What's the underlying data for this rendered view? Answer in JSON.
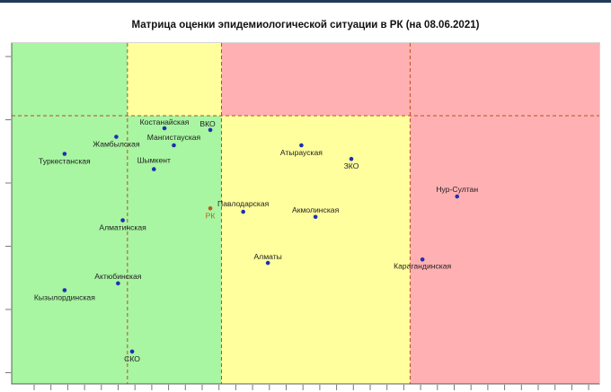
{
  "title": "Матрица оценки эпидемиологической ситуации в РК (на 08.06.2021)",
  "colors": {
    "green": "#a8f5a2",
    "yellow": "#ffff9e",
    "red": "#ffb0b3",
    "point": "#1f2fb0",
    "point_rk": "#b85c1e",
    "divider": "#b8501c"
  },
  "chart_data": {
    "type": "scatter",
    "title": "Матрица оценки эпидемиологической ситуации в РК (на 08.06.2021)",
    "xlabel": "",
    "ylabel": "",
    "xlim": [
      0,
      100
    ],
    "ylim": [
      0,
      100
    ],
    "grid": false,
    "zones": [
      {
        "x": [
          0,
          100
        ],
        "y": [
          0,
          100
        ],
        "color": "green"
      },
      {
        "x": [
          19.7,
          35.7
        ],
        "y": [
          78.7,
          100
        ],
        "color": "yellow"
      },
      {
        "x": [
          35.7,
          67.8
        ],
        "y": [
          0,
          78.7
        ],
        "color": "yellow"
      },
      {
        "x": [
          35.7,
          100
        ],
        "y": [
          78.7,
          100
        ],
        "color": "red"
      },
      {
        "x": [
          67.8,
          100
        ],
        "y": [
          0,
          78.7
        ],
        "color": "red"
      }
    ],
    "dividers": {
      "x": [
        19.7,
        35.7,
        67.8
      ],
      "y": [
        78.7
      ]
    },
    "points": [
      {
        "label": "Костанайская",
        "x": 26.0,
        "y": 75.0
      },
      {
        "label": "ВКО",
        "x": 33.8,
        "y": 74.5
      },
      {
        "label": "Жамбылская",
        "x": 17.8,
        "y": 72.5
      },
      {
        "label": "Мангистауская",
        "x": 27.6,
        "y": 70.0
      },
      {
        "label": "Туркестанская",
        "x": 9.0,
        "y": 67.5
      },
      {
        "label": "Шымкент",
        "x": 24.2,
        "y": 63.0
      },
      {
        "label": "Атырауская",
        "x": 49.3,
        "y": 70.0
      },
      {
        "label": "ЗКО",
        "x": 57.8,
        "y": 66.0
      },
      {
        "label": "Нур-Султан",
        "x": 75.8,
        "y": 55.0
      },
      {
        "label": "РК",
        "x": 33.8,
        "y": 51.5
      },
      {
        "label": "Павлодарская",
        "x": 39.4,
        "y": 50.5
      },
      {
        "label": "Акмолинская",
        "x": 51.7,
        "y": 49.0
      },
      {
        "label": "Алматинская",
        "x": 18.9,
        "y": 48.0
      },
      {
        "label": "Алматы",
        "x": 43.6,
        "y": 35.5
      },
      {
        "label": "Карагандинская",
        "x": 69.9,
        "y": 36.5
      },
      {
        "label": "Актюбинская",
        "x": 18.1,
        "y": 29.5
      },
      {
        "label": "Кызылординская",
        "x": 9.0,
        "y": 27.5
      },
      {
        "label": "СКО",
        "x": 20.5,
        "y": 9.5
      }
    ]
  }
}
